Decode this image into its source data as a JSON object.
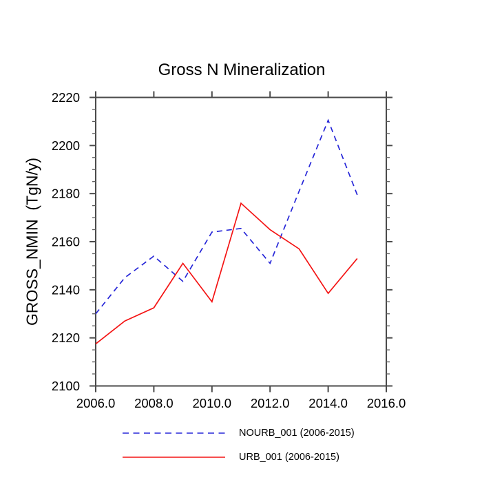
{
  "chart_data": {
    "type": "line",
    "title": "Gross N Mineralization",
    "xlabel": "",
    "ylabel": "GROSS_NMIN  (TgN/y)",
    "x": [
      2006,
      2007,
      2008,
      2009,
      2010,
      2011,
      2012,
      2013,
      2014,
      2015
    ],
    "series": [
      {
        "name": "NOURB_001 (2006-2015)",
        "color": "#2626d8",
        "style": "dashed",
        "values": [
          2130,
          2145,
          2154,
          2143.5,
          2164,
          2165.5,
          2151,
          2181,
          2210.5,
          2179.5
        ]
      },
      {
        "name": "URB_001 (2006-2015)",
        "color": "#f41414",
        "style": "solid",
        "values": [
          2117.5,
          2127,
          2132.5,
          2151,
          2135,
          2176,
          2165,
          2157,
          2138.5,
          2153
        ]
      }
    ],
    "xlim": [
      2006,
      2016
    ],
    "ylim": [
      2100,
      2220
    ],
    "x_ticks": [
      "2006.0",
      "2008.0",
      "2010.0",
      "2012.0",
      "2014.0",
      "2016.0"
    ],
    "y_ticks": [
      "2100",
      "2120",
      "2140",
      "2160",
      "2180",
      "2200",
      "2220"
    ],
    "y_minor_step": 5,
    "grid": false,
    "legend_position": "bottom",
    "axis_color": "#4a4a4a"
  }
}
